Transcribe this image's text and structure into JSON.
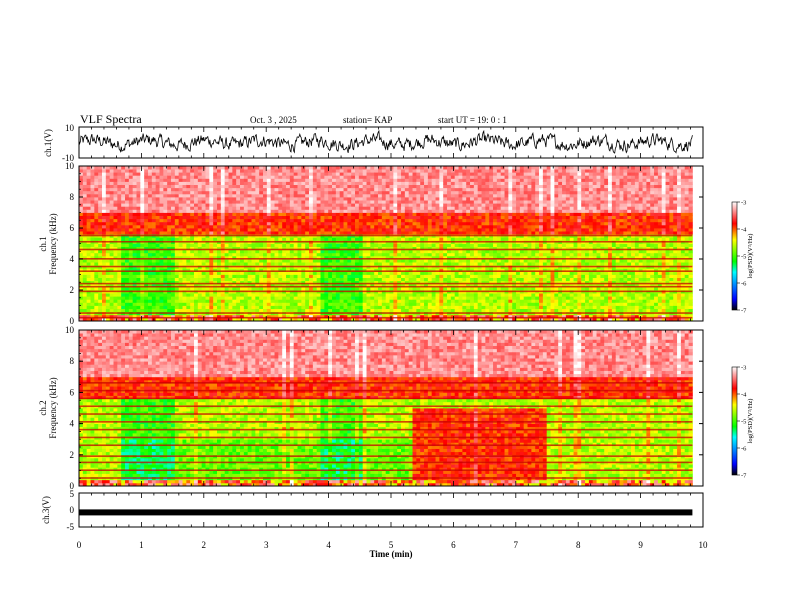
{
  "header": {
    "title": "VLF Spectra",
    "date": "Oct. 3 , 2025",
    "station": "station= KAP",
    "start_time": "start UT =  19: 0 : 1"
  },
  "chart_data": [
    {
      "type": "line",
      "panel": "ch1-waveform",
      "ylabel": "ch.1(V)",
      "ylim": [
        -10,
        10
      ],
      "y_ticks": [
        "10",
        "-10"
      ],
      "xlim": [
        0,
        9.83
      ]
    },
    {
      "type": "heatmap",
      "panel": "ch1-spectrogram",
      "ylabel": "ch.1\nFrequency  (kHz)",
      "ylim": [
        0,
        10
      ],
      "y_ticks": [
        "0",
        "2",
        "4",
        "6",
        "8",
        "10"
      ],
      "xlim": [
        0,
        9.83
      ],
      "colorbar": {
        "label": "log(PSD)(V²/Hz)",
        "range": [
          -7,
          -3
        ],
        "ticks": [
          "-3",
          "-4",
          "-5",
          "-6",
          "-7"
        ]
      },
      "interference_lines_khz": [
        0.2,
        0.5,
        1.9,
        2.2,
        2.4,
        3.2,
        3.5,
        4.0,
        4.6,
        5.1,
        5.5
      ],
      "quiet_intervals_min": [
        [
          0.65,
          1.55
        ],
        [
          3.85,
          4.55
        ]
      ]
    },
    {
      "type": "heatmap",
      "panel": "ch2-spectrogram",
      "ylabel": "ch.2\nFrequency  (kHz)",
      "ylim": [
        0,
        10
      ],
      "y_ticks": [
        "0",
        "2",
        "4",
        "6",
        "8",
        "10"
      ],
      "xlim": [
        0,
        9.83
      ],
      "colorbar": {
        "label": "log(PSD)(V²/Hz)",
        "range": [
          -7,
          -3
        ],
        "ticks": [
          "-3",
          "-4",
          "-5",
          "-6",
          "-7"
        ]
      },
      "interference_lines_khz": [
        0.5,
        1.0,
        1.5,
        1.9,
        2.6,
        3.1,
        3.6,
        4.1,
        4.6,
        5.1,
        5.6,
        6.1,
        6.6
      ],
      "quiet_intervals_min": [
        [
          0.65,
          1.55
        ],
        [
          3.85,
          4.55
        ]
      ],
      "low_band_enhanced_min": [
        [
          0.65,
          5.35
        ]
      ],
      "noisy_intervals_min": [
        [
          5.35,
          7.5
        ]
      ]
    },
    {
      "type": "line",
      "panel": "ch3-waveform",
      "ylabel": "ch.3(V)",
      "ylim": [
        -5,
        5
      ],
      "y_ticks": [
        "5",
        "0",
        "-5"
      ],
      "level_v": -0.7,
      "xlim": [
        0,
        9.83
      ]
    }
  ],
  "x_axis": {
    "label": "Time  (min)",
    "range": [
      0,
      10
    ],
    "ticks": [
      "0",
      "1",
      "2",
      "3",
      "4",
      "5",
      "6",
      "7",
      "8",
      "9",
      "10"
    ]
  },
  "colors": {
    "cmap": [
      "#000000",
      "#0000ff",
      "#00ffff",
      "#00ff00",
      "#ffff00",
      "#ff0000",
      "#ffffff"
    ]
  }
}
